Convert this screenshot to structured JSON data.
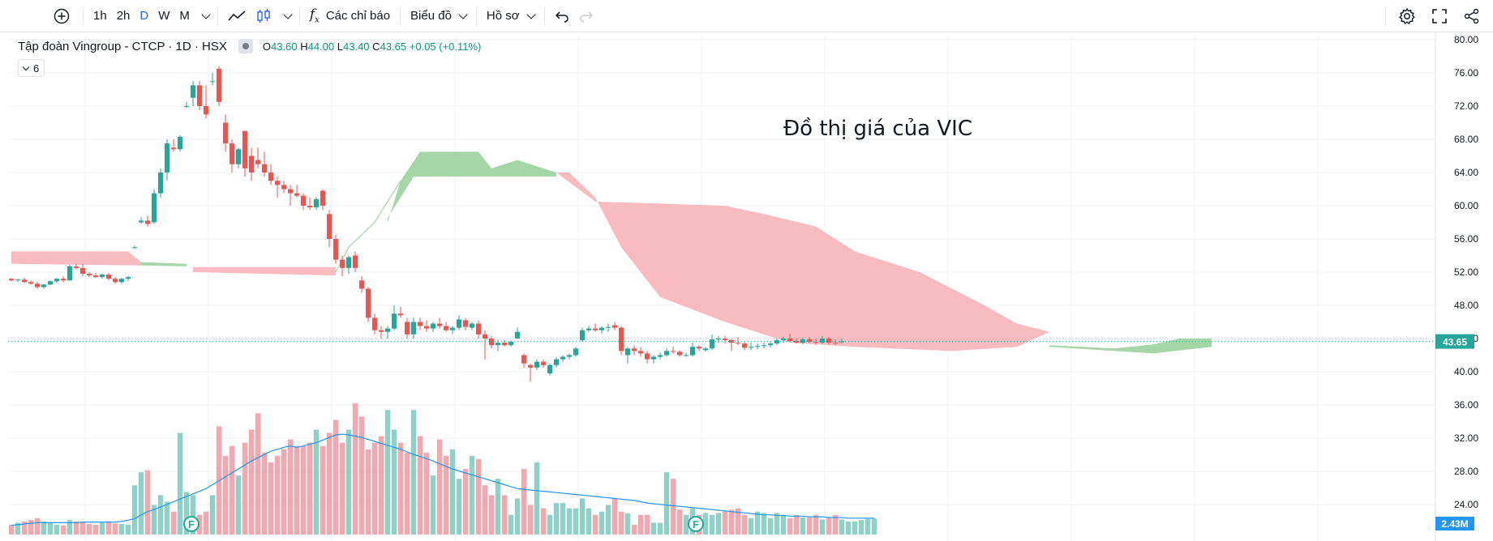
{
  "toolbar": {
    "add_label": "+",
    "intervals": [
      "1h",
      "2h",
      "D",
      "W",
      "M"
    ],
    "active_interval": "D",
    "indicators_label": "Các chỉ báo",
    "chart_label": "Biểu đồ",
    "profile_label": "Hồ sơ",
    "icons": [
      "plus-circle-icon",
      "chevron-down-icon",
      "line-chart-icon",
      "candles-icon",
      "fx-icon",
      "undo-icon",
      "redo-icon",
      "gear-icon",
      "fullscreen-icon",
      "share-icon"
    ]
  },
  "legend": {
    "symbol": "Tập đoàn Vingroup - CTCP · 1D · HSX",
    "o_label": "O",
    "o_value": "43.60",
    "h_label": "H",
    "h_value": "44.00",
    "l_label": "L",
    "l_value": "43.40",
    "c_label": "C",
    "c_value": "43.65",
    "change": "+0.05 (+0.11%)",
    "collapse_count": "6"
  },
  "annotation": "Đồ thị giá của VIC",
  "chart_data": {
    "type": "candlestick",
    "y_ticks": [
      "80.00",
      "76.00",
      "72.00",
      "68.00",
      "64.00",
      "60.00",
      "56.00",
      "52.00",
      "48.00",
      "44.00",
      "40.00",
      "36.00",
      "32.00",
      "28.00",
      "24.00"
    ],
    "ylim": [
      20,
      80
    ],
    "last_price": "43.65",
    "last_volume": "2.43M",
    "colors": {
      "up": "#26a69a",
      "down": "#ef5350",
      "vol_up": "#8ed1c6",
      "vol_down": "#f5a6ae",
      "cloud_up": "#a5d6a7",
      "cloud_down": "#f8bbc0",
      "ma": "#2196f3"
    },
    "candles": [
      [
        51.2,
        51.3,
        50.9,
        51.0
      ],
      [
        51.0,
        51.2,
        50.8,
        51.1
      ],
      [
        51.1,
        51.3,
        50.7,
        50.8
      ],
      [
        50.8,
        51.0,
        50.5,
        50.6
      ],
      [
        50.6,
        50.8,
        50.0,
        50.2
      ],
      [
        50.2,
        50.6,
        50.0,
        50.5
      ],
      [
        50.5,
        51.0,
        50.4,
        50.9
      ],
      [
        50.9,
        51.3,
        50.7,
        51.2
      ],
      [
        51.2,
        51.5,
        50.8,
        51.0
      ],
      [
        51.0,
        52.9,
        51.0,
        52.7
      ],
      [
        52.7,
        53.0,
        52.3,
        52.5
      ],
      [
        52.5,
        53.0,
        51.5,
        51.8
      ],
      [
        51.8,
        52.0,
        51.4,
        51.6
      ],
      [
        51.6,
        51.9,
        51.3,
        51.4
      ],
      [
        51.4,
        51.8,
        51.2,
        51.7
      ],
      [
        51.7,
        51.9,
        51.0,
        51.2
      ],
      [
        51.2,
        51.4,
        50.6,
        50.8
      ],
      [
        50.8,
        51.3,
        50.6,
        51.2
      ],
      [
        51.2,
        51.5,
        50.9,
        51.4
      ],
      [
        55.0,
        55.2,
        54.8,
        55.0
      ],
      [
        58.0,
        58.6,
        57.8,
        58.2
      ],
      [
        58.2,
        58.8,
        57.5,
        57.8
      ],
      [
        58.0,
        62.0,
        57.8,
        61.5
      ],
      [
        61.5,
        64.5,
        61.0,
        64.0
      ],
      [
        64.0,
        68.0,
        63.0,
        67.5
      ],
      [
        67.0,
        68.0,
        66.5,
        66.8
      ],
      [
        66.8,
        68.5,
        66.5,
        68.3
      ],
      [
        72.0,
        72.5,
        71.8,
        72.0
      ],
      [
        73.0,
        75.0,
        72.0,
        74.5
      ],
      [
        74.5,
        75.0,
        71.5,
        72.0
      ],
      [
        72.0,
        74.5,
        70.5,
        71.0
      ],
      [
        75.0,
        76.0,
        74.5,
        75.0
      ],
      [
        76.5,
        76.8,
        72.0,
        72.5
      ],
      [
        70.0,
        71.0,
        66.5,
        67.5
      ],
      [
        67.5,
        68.0,
        64.0,
        65.0
      ],
      [
        65.0,
        67.0,
        64.5,
        66.8
      ],
      [
        69.0,
        69.0,
        63.5,
        64.5
      ],
      [
        66.0,
        67.0,
        63.0,
        64.0
      ],
      [
        65.5,
        67.0,
        64.5,
        65.0
      ],
      [
        65.0,
        66.5,
        63.5,
        64.0
      ],
      [
        64.0,
        65.0,
        62.5,
        63.0
      ],
      [
        63.0,
        63.5,
        61.0,
        62.5
      ],
      [
        62.5,
        63.0,
        61.5,
        62.0
      ],
      [
        62.0,
        62.5,
        60.0,
        61.5
      ],
      [
        61.5,
        62.5,
        61.0,
        61.2
      ],
      [
        61.2,
        61.5,
        59.5,
        60.0
      ],
      [
        60.0,
        61.0,
        59.5,
        59.8
      ],
      [
        59.8,
        61.0,
        59.5,
        60.8
      ],
      [
        61.8,
        62.0,
        59.5,
        60.0
      ],
      [
        59.0,
        59.5,
        55.0,
        56.0
      ],
      [
        56.0,
        56.5,
        53.0,
        53.5
      ],
      [
        53.5,
        54.0,
        51.5,
        52.5
      ],
      [
        52.5,
        54.0,
        51.8,
        53.8
      ],
      [
        54.0,
        54.5,
        52.0,
        52.5
      ],
      [
        51.0,
        51.5,
        49.5,
        50.0
      ],
      [
        50.0,
        50.2,
        46.0,
        46.5
      ],
      [
        46.5,
        47.0,
        44.5,
        45.0
      ],
      [
        45.0,
        45.5,
        44.0,
        44.8
      ],
      [
        44.8,
        45.5,
        44.0,
        45.2
      ],
      [
        45.2,
        48.0,
        45.0,
        47.0
      ],
      [
        47.0,
        47.8,
        46.5,
        46.8
      ],
      [
        46.0,
        46.5,
        44.0,
        44.5
      ],
      [
        44.5,
        46.5,
        44.0,
        46.0
      ],
      [
        46.0,
        46.5,
        45.0,
        45.5
      ],
      [
        45.5,
        46.2,
        44.8,
        45.2
      ],
      [
        45.2,
        46.0,
        44.8,
        45.8
      ],
      [
        45.8,
        46.5,
        45.2,
        45.5
      ],
      [
        45.5,
        46.0,
        44.8,
        45.0
      ],
      [
        45.0,
        45.5,
        44.5,
        45.3
      ],
      [
        45.3,
        46.8,
        45.0,
        46.3
      ],
      [
        46.2,
        46.5,
        45.0,
        45.4
      ],
      [
        45.3,
        46.0,
        45.0,
        45.8
      ],
      [
        45.8,
        46.2,
        44.0,
        44.5
      ],
      [
        44.5,
        45.0,
        41.5,
        44.0
      ],
      [
        44.0,
        44.3,
        42.8,
        43.2
      ],
      [
        43.2,
        43.8,
        42.5,
        43.5
      ],
      [
        43.5,
        43.8,
        43.0,
        43.2
      ],
      [
        43.2,
        43.8,
        43.0,
        43.6
      ],
      [
        44.0,
        45.3,
        44.0,
        44.8
      ],
      [
        42.0,
        42.2,
        40.5,
        41.0
      ],
      [
        40.8,
        41.0,
        38.8,
        40.5
      ],
      [
        40.5,
        41.5,
        40.2,
        41.2
      ],
      [
        41.2,
        41.5,
        40.5,
        40.8
      ],
      [
        39.8,
        41.0,
        39.5,
        40.8
      ],
      [
        40.8,
        41.8,
        40.5,
        41.5
      ],
      [
        41.5,
        42.0,
        41.2,
        41.8
      ],
      [
        41.8,
        42.2,
        41.5,
        42.0
      ],
      [
        42.0,
        43.0,
        41.8,
        42.8
      ],
      [
        43.8,
        45.3,
        43.6,
        45.0
      ],
      [
        45.0,
        45.5,
        44.8,
        45.2
      ],
      [
        45.2,
        45.8,
        44.8,
        45.0
      ],
      [
        45.0,
        45.5,
        44.6,
        45.3
      ],
      [
        45.3,
        45.8,
        44.8,
        45.4
      ],
      [
        45.6,
        46.0,
        45.0,
        45.3
      ],
      [
        45.3,
        45.5,
        42.0,
        42.5
      ],
      [
        42.0,
        43.0,
        41.0,
        42.8
      ],
      [
        42.8,
        43.2,
        42.0,
        42.5
      ],
      [
        42.5,
        43.0,
        41.8,
        42.2
      ],
      [
        42.2,
        42.5,
        41.0,
        41.5
      ],
      [
        41.5,
        42.0,
        41.0,
        41.8
      ],
      [
        41.8,
        42.3,
        41.5,
        42.0
      ],
      [
        42.0,
        42.8,
        41.8,
        42.5
      ],
      [
        42.5,
        43.0,
        42.2,
        42.4
      ],
      [
        42.4,
        42.6,
        41.8,
        42.0
      ],
      [
        42.0,
        42.3,
        41.8,
        42.0
      ],
      [
        42.0,
        43.5,
        41.8,
        43.0
      ],
      [
        43.0,
        43.2,
        42.5,
        42.8
      ],
      [
        42.6,
        43.0,
        42.4,
        42.8
      ],
      [
        42.8,
        44.5,
        42.6,
        43.9
      ],
      [
        43.9,
        44.3,
        43.5,
        44.0
      ],
      [
        44.0,
        44.3,
        43.4,
        43.8
      ],
      [
        43.8,
        44.0,
        42.5,
        43.5
      ],
      [
        43.5,
        44.2,
        43.2,
        43.4
      ],
      [
        43.4,
        43.6,
        42.6,
        42.9
      ],
      [
        42.9,
        43.5,
        42.6,
        43.0
      ],
      [
        43.0,
        43.4,
        42.7,
        43.1
      ],
      [
        43.1,
        43.5,
        42.8,
        43.2
      ],
      [
        43.2,
        43.6,
        42.9,
        43.4
      ],
      [
        43.4,
        44.0,
        43.2,
        43.8
      ],
      [
        43.8,
        44.2,
        43.5,
        44.0
      ],
      [
        44.0,
        44.6,
        43.6,
        43.7
      ],
      [
        43.7,
        44.0,
        43.4,
        43.5
      ],
      [
        43.5,
        44.1,
        43.3,
        43.9
      ],
      [
        43.9,
        44.2,
        43.5,
        43.6
      ],
      [
        43.6,
        44.0,
        43.2,
        43.5
      ],
      [
        43.5,
        44.3,
        43.3,
        44.0
      ],
      [
        44.0,
        44.2,
        43.3,
        43.5
      ],
      [
        43.5,
        43.9,
        43.2,
        43.4
      ],
      [
        43.6,
        44.0,
        43.4,
        43.65
      ]
    ],
    "volumes": [
      1.5,
      1.8,
      2.0,
      2.2,
      2.5,
      2.0,
      1.8,
      1.5,
      1.4,
      2.2,
      2.0,
      1.9,
      1.6,
      1.5,
      1.8,
      2.0,
      1.7,
      1.6,
      1.5,
      7.5,
      9.5,
      9.8,
      4.5,
      6.0,
      5.0,
      3.5,
      15.5,
      6.5,
      6.0,
      3.0,
      3.5,
      6.0,
      16.5,
      12.0,
      13.5,
      9.0,
      14.0,
      16.0,
      18.5,
      12.5,
      11.0,
      12.0,
      13.0,
      14.5,
      13.5,
      13.5,
      14.0,
      16.0,
      13.5,
      15.5,
      17.5,
      14.0,
      16.0,
      20.0,
      18.0,
      13.0,
      14.0,
      15.0,
      19.0,
      16.0,
      14.0,
      12.5,
      19.0,
      15.0,
      12.5,
      9.0,
      14.5,
      12.0,
      13.0,
      8.5,
      10.0,
      12.0,
      11.5,
      7.5,
      6.0,
      8.5,
      6.0,
      3.0,
      5.5,
      10.0,
      4.5,
      11.0,
      4.0,
      3.0,
      4.8,
      4.8,
      4.0,
      4.0,
      5.5,
      4.0,
      3.0,
      3.5,
      4.5,
      5.5,
      3.5,
      3.2,
      1.5,
      3.0,
      3.0,
      1.8,
      1.8,
      9.5,
      8.5,
      3.8,
      3.0,
      4.0,
      3.0,
      3.3,
      3.0,
      3.3,
      3.5,
      3.8,
      4.0,
      3.0,
      2.5,
      3.5,
      3.3,
      2.5,
      3.3,
      3.0,
      2.5,
      3.0,
      2.6,
      2.6,
      3.0,
      2.3,
      2.5,
      3.0,
      2.3,
      2.0,
      2.0,
      2.2,
      2.4,
      2.43
    ],
    "ma": [
      1.4,
      1.5,
      1.6,
      1.7,
      1.8,
      1.8,
      1.8,
      1.8,
      1.8,
      1.8,
      1.8,
      1.9,
      1.9,
      1.9,
      1.9,
      1.9,
      1.9,
      2.0,
      2.2,
      2.4,
      3.0,
      3.5,
      3.8,
      4.2,
      4.6,
      5.0,
      5.4,
      5.8,
      6.2,
      6.6,
      7.0,
      7.6,
      8.2,
      8.8,
      9.4,
      10.0,
      10.6,
      11.2,
      11.7,
      12.2,
      12.7,
      13.0,
      13.3,
      13.5,
      13.3,
      13.5,
      13.8,
      14.0,
      14.4,
      14.8,
      15.2,
      15.3,
      15.2,
      15.0,
      14.8,
      14.5,
      14.2,
      13.9,
      13.6,
      13.3,
      13.0,
      12.6,
      12.2,
      11.9,
      11.6,
      11.2,
      10.8,
      10.4,
      10.0,
      9.7,
      9.4,
      9.1,
      8.8,
      8.5,
      8.2,
      7.9,
      7.6,
      7.3,
      7.0,
      6.9,
      6.8,
      6.7,
      6.6,
      6.5,
      6.4,
      6.3,
      6.2,
      6.1,
      6.0,
      5.9,
      5.8,
      5.7,
      5.6,
      5.5,
      5.4,
      5.3,
      5.2,
      5.0,
      4.8,
      4.7,
      4.6,
      4.5,
      4.4,
      4.3,
      4.2,
      4.1,
      4.0,
      3.9,
      3.8,
      3.7,
      3.6,
      3.5,
      3.4,
      3.3,
      3.2,
      3.1,
      3.0,
      3.0,
      2.9,
      2.9,
      2.8,
      2.8,
      2.8,
      2.7,
      2.7,
      2.7,
      2.6,
      2.6,
      2.6,
      2.5,
      2.5,
      2.5,
      2.5,
      2.5
    ],
    "vol_max_label": "2.43M"
  }
}
